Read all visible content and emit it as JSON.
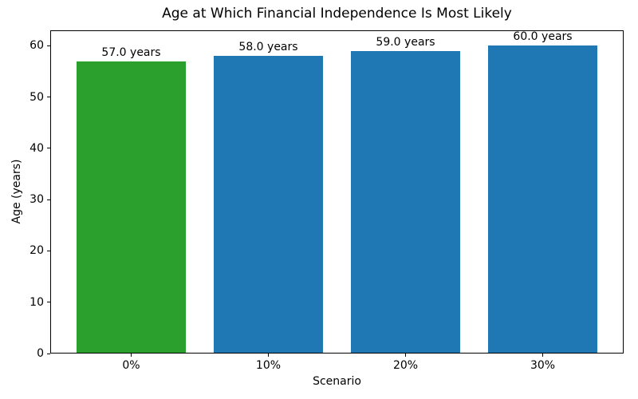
{
  "chart_data": {
    "type": "bar",
    "title": "Age at Which Financial Independence Is Most Likely",
    "xlabel": "Scenario",
    "ylabel": "Age (years)",
    "categories": [
      "0%",
      "10%",
      "20%",
      "30%"
    ],
    "values": [
      57.0,
      58.0,
      59.0,
      60.0
    ],
    "bar_labels": [
      "57.0 years",
      "58.0 years",
      "59.0 years",
      "60.0 years"
    ],
    "bar_colors": [
      "#2ca02c",
      "#1f77b4",
      "#1f77b4",
      "#1f77b4"
    ],
    "yticks": [
      0,
      10,
      20,
      30,
      40,
      50,
      60
    ],
    "ylim": [
      0,
      63
    ],
    "xlim": [
      -0.59,
      3.59
    ],
    "bar_width": 0.8,
    "grid": false,
    "legend_position": "none",
    "background_color": "#ffffff",
    "text_color": "#000000"
  }
}
